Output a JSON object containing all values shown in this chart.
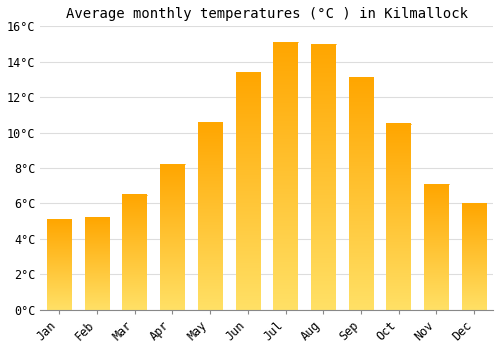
{
  "title": "Average monthly temperatures (°C ) in Kilmallock",
  "months": [
    "Jan",
    "Feb",
    "Mar",
    "Apr",
    "May",
    "Jun",
    "Jul",
    "Aug",
    "Sep",
    "Oct",
    "Nov",
    "Dec"
  ],
  "values": [
    5.1,
    5.2,
    6.5,
    8.2,
    10.6,
    13.4,
    15.1,
    15.0,
    13.1,
    10.5,
    7.1,
    6.0
  ],
  "bar_color_top": "#FFA500",
  "bar_color_bottom": "#FFE080",
  "ylim": [
    0,
    16
  ],
  "yticks": [
    0,
    2,
    4,
    6,
    8,
    10,
    12,
    14,
    16
  ],
  "ytick_labels": [
    "0°C",
    "2°C",
    "4°C",
    "6°C",
    "8°C",
    "10°C",
    "12°C",
    "14°C",
    "16°C"
  ],
  "background_color": "#FFFFFF",
  "grid_color": "#DDDDDD",
  "title_fontsize": 10,
  "tick_fontsize": 8.5,
  "font_family": "monospace",
  "figsize": [
    5.0,
    3.5
  ],
  "dpi": 100
}
